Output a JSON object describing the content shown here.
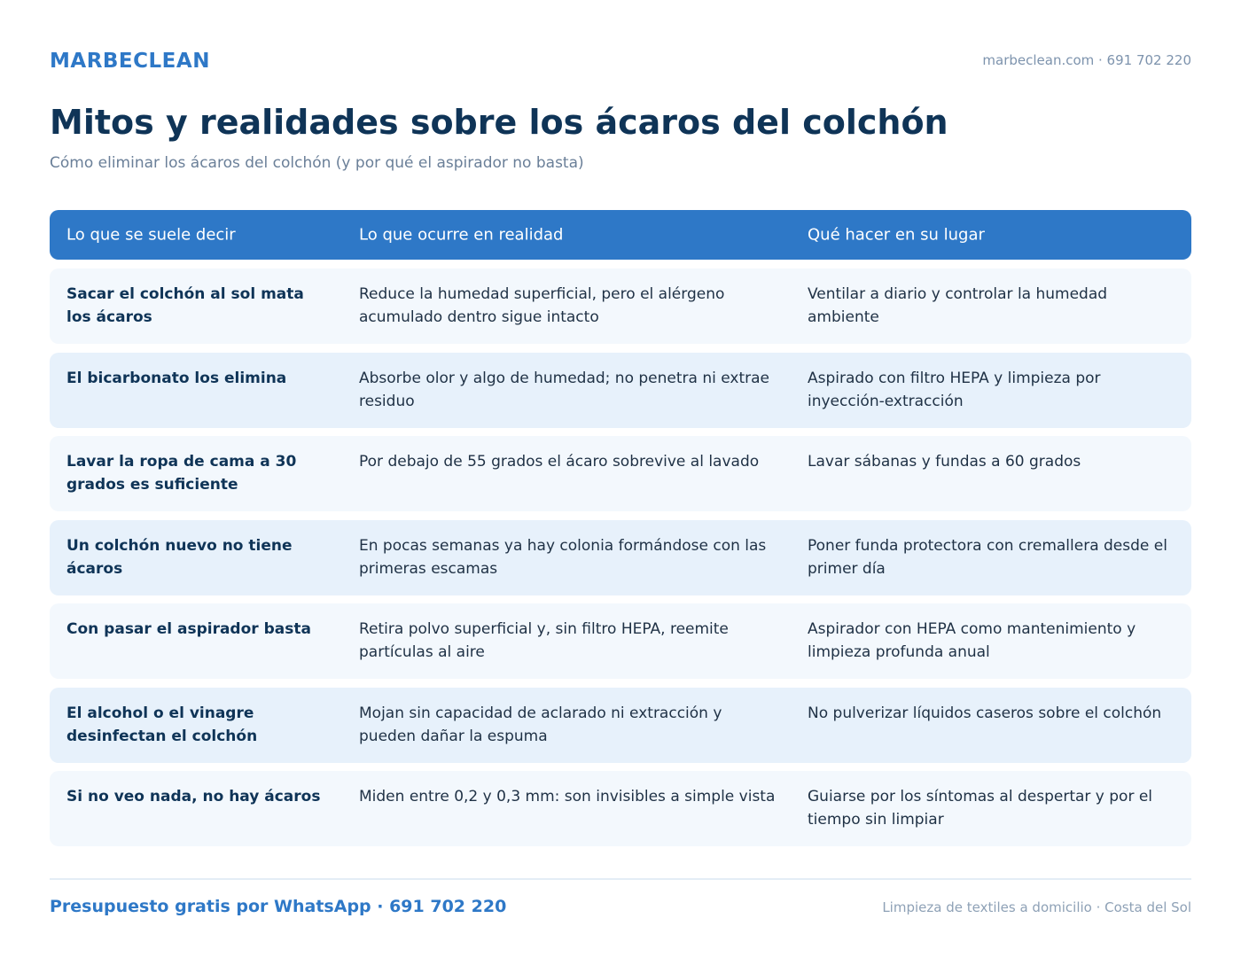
{
  "header": {
    "brand": "MARBECLEAN",
    "contact": "marbeclean.com · 691 702 220"
  },
  "title": "Mitos y realidades sobre los ácaros del colchón",
  "subtitle": "Cómo eliminar los ácaros del colchón (y por qué el aspirador no basta)",
  "table": {
    "headers": [
      "Lo que se suele decir",
      "Lo que ocurre en realidad",
      "Qué hacer en su lugar"
    ],
    "rows": [
      {
        "myth": "Sacar el colchón al sol mata los ácaros",
        "reality": "Reduce la humedad superficial, pero el alérgeno acumulado dentro sigue intacto",
        "action": "Ventilar a diario y controlar la humedad ambiente"
      },
      {
        "myth": "El bicarbonato los elimina",
        "reality": "Absorbe olor y algo de humedad; no penetra ni extrae residuo",
        "action": "Aspirado con filtro HEPA y limpieza por inyección-extracción"
      },
      {
        "myth": "Lavar la ropa de cama a 30 grados es suficiente",
        "reality": "Por debajo de 55 grados el ácaro sobrevive al lavado",
        "action": "Lavar sábanas y fundas a 60 grados"
      },
      {
        "myth": "Un colchón nuevo no tiene ácaros",
        "reality": "En pocas semanas ya hay colonia formándose con las primeras escamas",
        "action": "Poner funda protectora con cremallera desde el primer día"
      },
      {
        "myth": "Con pasar el aspirador basta",
        "reality": "Retira polvo superficial y, sin filtro HEPA, reemite partículas al aire",
        "action": "Aspirador con HEPA como mantenimiento y limpieza profunda anual"
      },
      {
        "myth": "El alcohol o el vinagre desinfectan el colchón",
        "reality": "Mojan sin capacidad de aclarado ni extracción y pueden dañar la espuma",
        "action": "No pulverizar líquidos caseros sobre el colchón"
      },
      {
        "myth": "Si no veo nada, no hay ácaros",
        "reality": "Miden entre 0,2 y 0,3 mm: son invisibles a simple vista",
        "action": "Guiarse por los síntomas al despertar y por el tiempo sin limpiar"
      }
    ]
  },
  "footer": {
    "cta": "Presupuesto gratis por WhatsApp · 691 702 220",
    "note": "Limpieza de textiles a domicilio · Costa del Sol"
  },
  "colors": {
    "accent": "#2e78c7",
    "heading": "#0f3457",
    "row_light": "#f3f8fd",
    "row_dark": "#e7f1fb"
  }
}
